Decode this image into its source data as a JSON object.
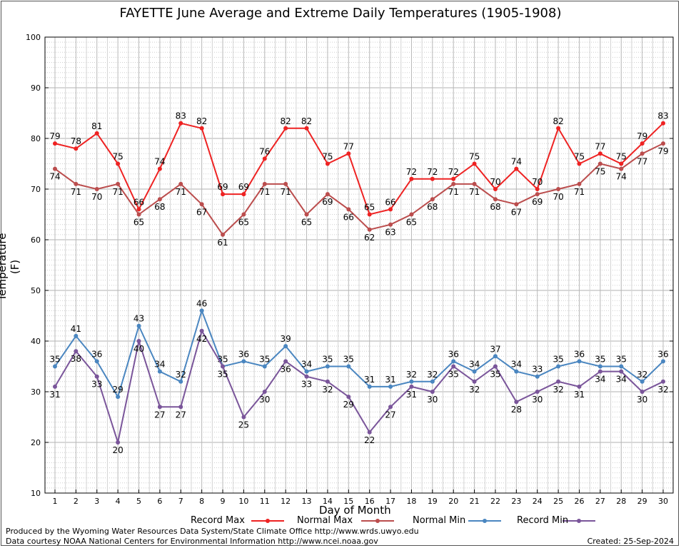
{
  "chart_data": {
    "type": "line",
    "title": "FAYETTE June Average and Extreme Daily Temperatures (1905-1908)",
    "xlabel": "Day of Month",
    "ylabel": "Temperature (F)",
    "ylim": [
      10,
      100
    ],
    "xlim": [
      1,
      30
    ],
    "y_ticks": [
      10,
      20,
      30,
      40,
      50,
      60,
      70,
      80,
      90,
      100
    ],
    "x": [
      1,
      2,
      3,
      4,
      5,
      6,
      7,
      8,
      9,
      10,
      11,
      12,
      13,
      14,
      15,
      16,
      17,
      18,
      19,
      20,
      21,
      22,
      23,
      24,
      25,
      26,
      27,
      28,
      29,
      30
    ],
    "grid": true,
    "series": [
      {
        "name": "Record Max",
        "color": "#ee2222",
        "values": [
          79,
          78,
          81,
          75,
          66,
          74,
          83,
          82,
          69,
          69,
          76,
          82,
          82,
          75,
          77,
          65,
          66,
          72,
          72,
          72,
          75,
          70,
          74,
          70,
          82,
          75,
          77,
          75,
          79,
          83
        ]
      },
      {
        "name": "Normal Max",
        "color": "#bb4d4d",
        "values": [
          74,
          71,
          70,
          71,
          65,
          68,
          71,
          67,
          61,
          65,
          71,
          71,
          65,
          69,
          66,
          62,
          63,
          65,
          68,
          71,
          71,
          68,
          67,
          69,
          70,
          71,
          75,
          74,
          77,
          79
        ]
      },
      {
        "name": "Normal Min",
        "color": "#4a86c0",
        "values": [
          35,
          41,
          36,
          29,
          43,
          34,
          32,
          46,
          35,
          36,
          35,
          39,
          34,
          35,
          35,
          31,
          31,
          32,
          32,
          36,
          34,
          37,
          34,
          33,
          35,
          36,
          35,
          35,
          32,
          36
        ]
      },
      {
        "name": "Record Min",
        "color": "#7a559a",
        "values": [
          31,
          38,
          33,
          20,
          40,
          27,
          27,
          42,
          35,
          25,
          30,
          36,
          33,
          32,
          29,
          22,
          27,
          31,
          30,
          35,
          32,
          35,
          28,
          30,
          32,
          31,
          34,
          34,
          30,
          32
        ]
      }
    ]
  },
  "legend": {
    "record_max": "Record Max",
    "normal_max": "Normal Max",
    "normal_min": "Normal Min",
    "record_min": "Record Min"
  },
  "footer": {
    "credit1": "Produced by the Wyoming Water Resources Data System/State Climate Office http://www.wrds.uwyo.edu",
    "credit2": "Data courtesy NOAA National Centers for Environmental Information http://www.ncei.noaa.gov",
    "created": "Created: 25-Sep-2024"
  }
}
